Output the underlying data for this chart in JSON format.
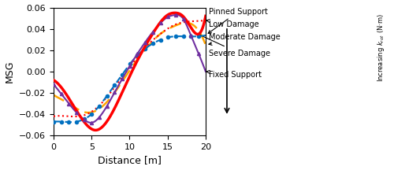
{
  "title": "",
  "xlabel": "Distance [m]",
  "ylabel": "MSG",
  "xlim": [
    0,
    20
  ],
  "ylim": [
    -0.06,
    0.06
  ],
  "xticks": [
    0,
    5,
    10,
    15,
    20
  ],
  "yticks": [
    -0.06,
    -0.04,
    -0.02,
    0,
    0.02,
    0.04,
    0.06
  ],
  "lines": {
    "pinned": {
      "color": "#0070C0",
      "style": "--",
      "marker": "o",
      "markersize": 3,
      "linewidth": 1.5,
      "label": "Pinned Support"
    },
    "low_damage": {
      "color": "#FF0000",
      "style": ":",
      "linewidth": 1.5,
      "label": "Low Damage"
    },
    "moderate_damage": {
      "color": "#FFA500",
      "style": "--",
      "linewidth": 1.8,
      "label": "Moderate Damage"
    },
    "severe_damage": {
      "color": "#FF0000",
      "style": "-",
      "linewidth": 2.5,
      "label": "Severe Damage"
    },
    "fixed": {
      "color": "#7030A0",
      "style": "-",
      "marker": "^",
      "markersize": 3,
      "linewidth": 1.5,
      "label": "Fixed Support"
    }
  },
  "annotation_fontsize": 7,
  "axis_label_fontsize": 9,
  "tick_fontsize": 8,
  "background_color": "#ffffff",
  "figsize": [
    5.0,
    2.16
  ],
  "dpi": 100
}
